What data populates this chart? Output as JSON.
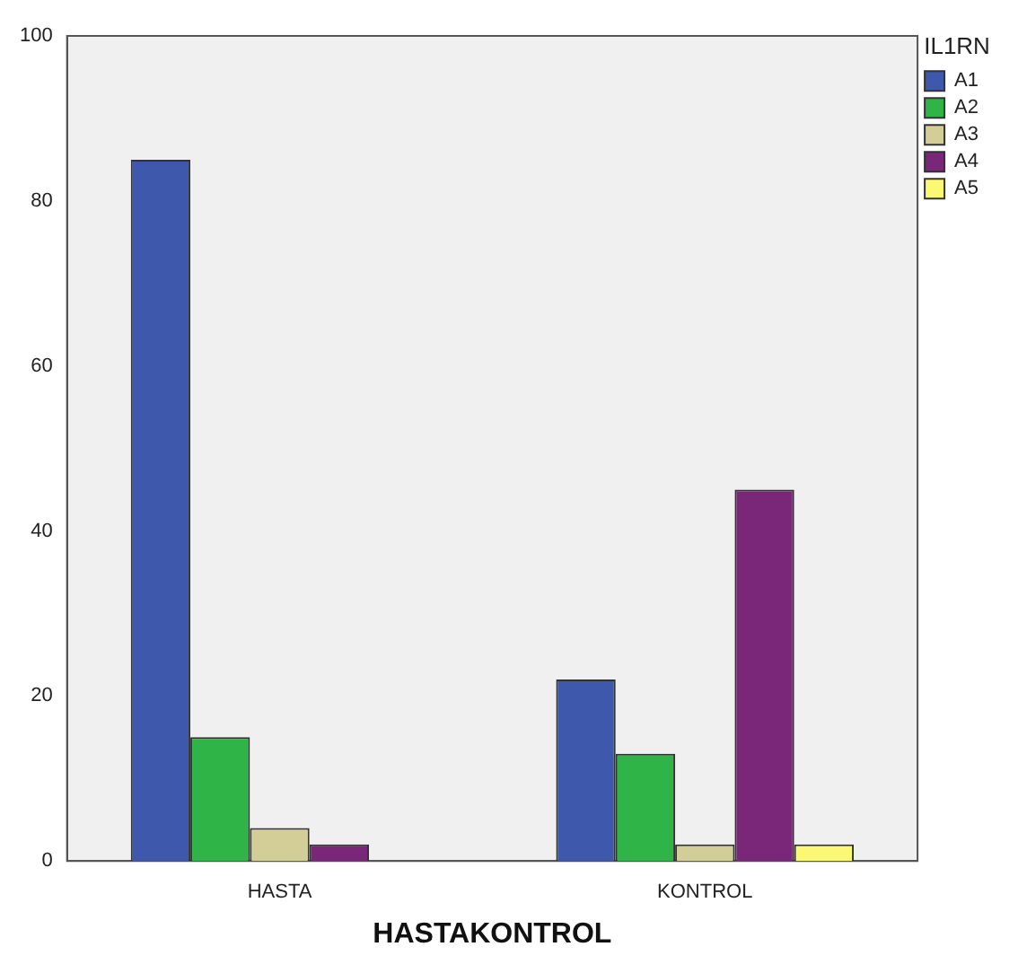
{
  "chart_data": {
    "type": "bar",
    "xlabel": "HASTAKONTROL",
    "legend_title": "IL1RN",
    "legend": "right",
    "grid": false,
    "categories": [
      "HASTA",
      "KONTROL"
    ],
    "series": [
      {
        "name": "A1",
        "color": "#3e58ac",
        "values": [
          85,
          22
        ]
      },
      {
        "name": "A2",
        "color": "#2fb547",
        "values": [
          15,
          13
        ]
      },
      {
        "name": "A3",
        "color": "#d3ce97",
        "values": [
          4,
          2
        ]
      },
      {
        "name": "A4",
        "color": "#7b2779",
        "values": [
          2,
          45
        ]
      },
      {
        "name": "A5",
        "color": "#fbf873",
        "values": [
          null,
          2
        ]
      }
    ],
    "ylim": [
      0,
      100
    ],
    "yticks": [
      0,
      20,
      40,
      60,
      80,
      100
    ]
  }
}
